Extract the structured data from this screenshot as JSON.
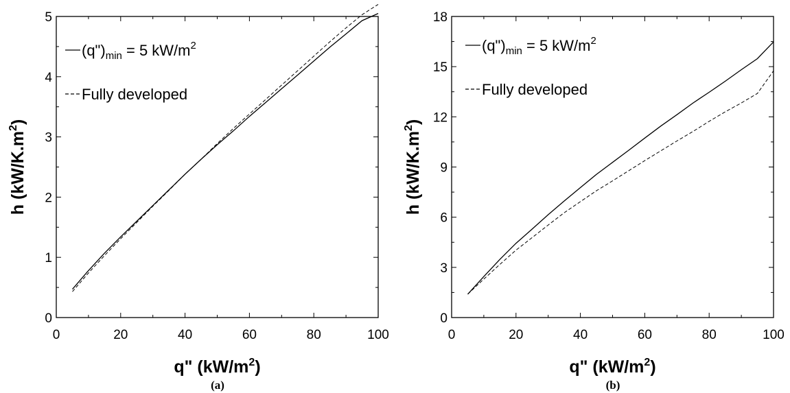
{
  "chart_data": [
    {
      "type": "line",
      "caption": "(a)",
      "xlabel": "q\" (kW/m",
      "xlabel_sup": "2",
      "xlabel_end": ")",
      "ylabel": "h (kW/K.m",
      "ylabel_sup": "2",
      "ylabel_end": ")",
      "xlim": [
        0,
        100
      ],
      "ylim": [
        0,
        5
      ],
      "xticks": [
        0,
        20,
        40,
        60,
        80,
        100
      ],
      "yticks": [
        0,
        1,
        2,
        3,
        4,
        5
      ],
      "grid": false,
      "legend_position": "top-left",
      "legend": [
        {
          "prefix": "(q\")",
          "sub": "min",
          "mid": " = 5 kW/m",
          "sup": "2",
          "style": "solid"
        },
        {
          "prefix": "Fully developed",
          "sub": "",
          "mid": "",
          "sup": "",
          "style": "dashed"
        }
      ],
      "series": [
        {
          "style": "solid",
          "x": [
            5,
            10,
            15,
            20,
            25,
            30,
            35,
            40,
            45,
            50,
            55,
            60,
            65,
            70,
            75,
            80,
            85,
            90,
            95,
            100
          ],
          "y": [
            0.47,
            0.78,
            1.07,
            1.34,
            1.6,
            1.86,
            2.12,
            2.38,
            2.63,
            2.87,
            3.1,
            3.34,
            3.57,
            3.8,
            4.03,
            4.26,
            4.49,
            4.71,
            4.93,
            5.05
          ]
        },
        {
          "style": "dashed",
          "x": [
            5,
            10,
            15,
            20,
            25,
            30,
            35,
            40,
            45,
            50,
            55,
            60,
            65,
            70,
            75,
            80,
            85,
            90,
            95,
            100
          ],
          "y": [
            0.43,
            0.74,
            1.03,
            1.31,
            1.58,
            1.85,
            2.11,
            2.38,
            2.63,
            2.89,
            3.14,
            3.38,
            3.62,
            3.86,
            4.1,
            4.34,
            4.58,
            4.81,
            5.03,
            5.2
          ]
        }
      ]
    },
    {
      "type": "line",
      "caption": "(b)",
      "xlabel": "q\" (kW/m",
      "xlabel_sup": "2",
      "xlabel_end": ")",
      "ylabel": "h (kW/K.m",
      "ylabel_sup": "2",
      "ylabel_end": ")",
      "xlim": [
        0,
        100
      ],
      "ylim": [
        0,
        18
      ],
      "xticks": [
        0,
        20,
        40,
        60,
        80,
        100
      ],
      "yticks": [
        0,
        3,
        6,
        9,
        12,
        15,
        18
      ],
      "grid": false,
      "legend_position": "top-left",
      "legend": [
        {
          "prefix": "(q\")",
          "sub": "min",
          "mid": " = 5 kW/m",
          "sup": "2",
          "style": "solid"
        },
        {
          "prefix": "Fully developed",
          "sub": "",
          "mid": "",
          "sup": "",
          "style": "dashed"
        }
      ],
      "series": [
        {
          "style": "solid",
          "x": [
            5,
            10,
            15,
            20,
            25,
            30,
            35,
            40,
            45,
            50,
            55,
            60,
            65,
            70,
            75,
            80,
            85,
            90,
            95,
            100
          ],
          "y": [
            1.4,
            2.45,
            3.48,
            4.44,
            5.29,
            6.15,
            6.97,
            7.77,
            8.56,
            9.28,
            10.0,
            10.73,
            11.45,
            12.13,
            12.83,
            13.47,
            14.13,
            14.82,
            15.48,
            16.48
          ]
        },
        {
          "style": "dashed",
          "x": [
            5,
            10,
            15,
            20,
            25,
            30,
            35,
            40,
            45,
            50,
            55,
            60,
            65,
            70,
            75,
            80,
            85,
            90,
            95,
            100
          ],
          "y": [
            1.4,
            2.3,
            3.18,
            4.03,
            4.78,
            5.53,
            6.27,
            6.93,
            7.58,
            8.17,
            8.78,
            9.38,
            9.97,
            10.56,
            11.13,
            11.73,
            12.3,
            12.83,
            13.4,
            14.75
          ]
        }
      ]
    }
  ]
}
